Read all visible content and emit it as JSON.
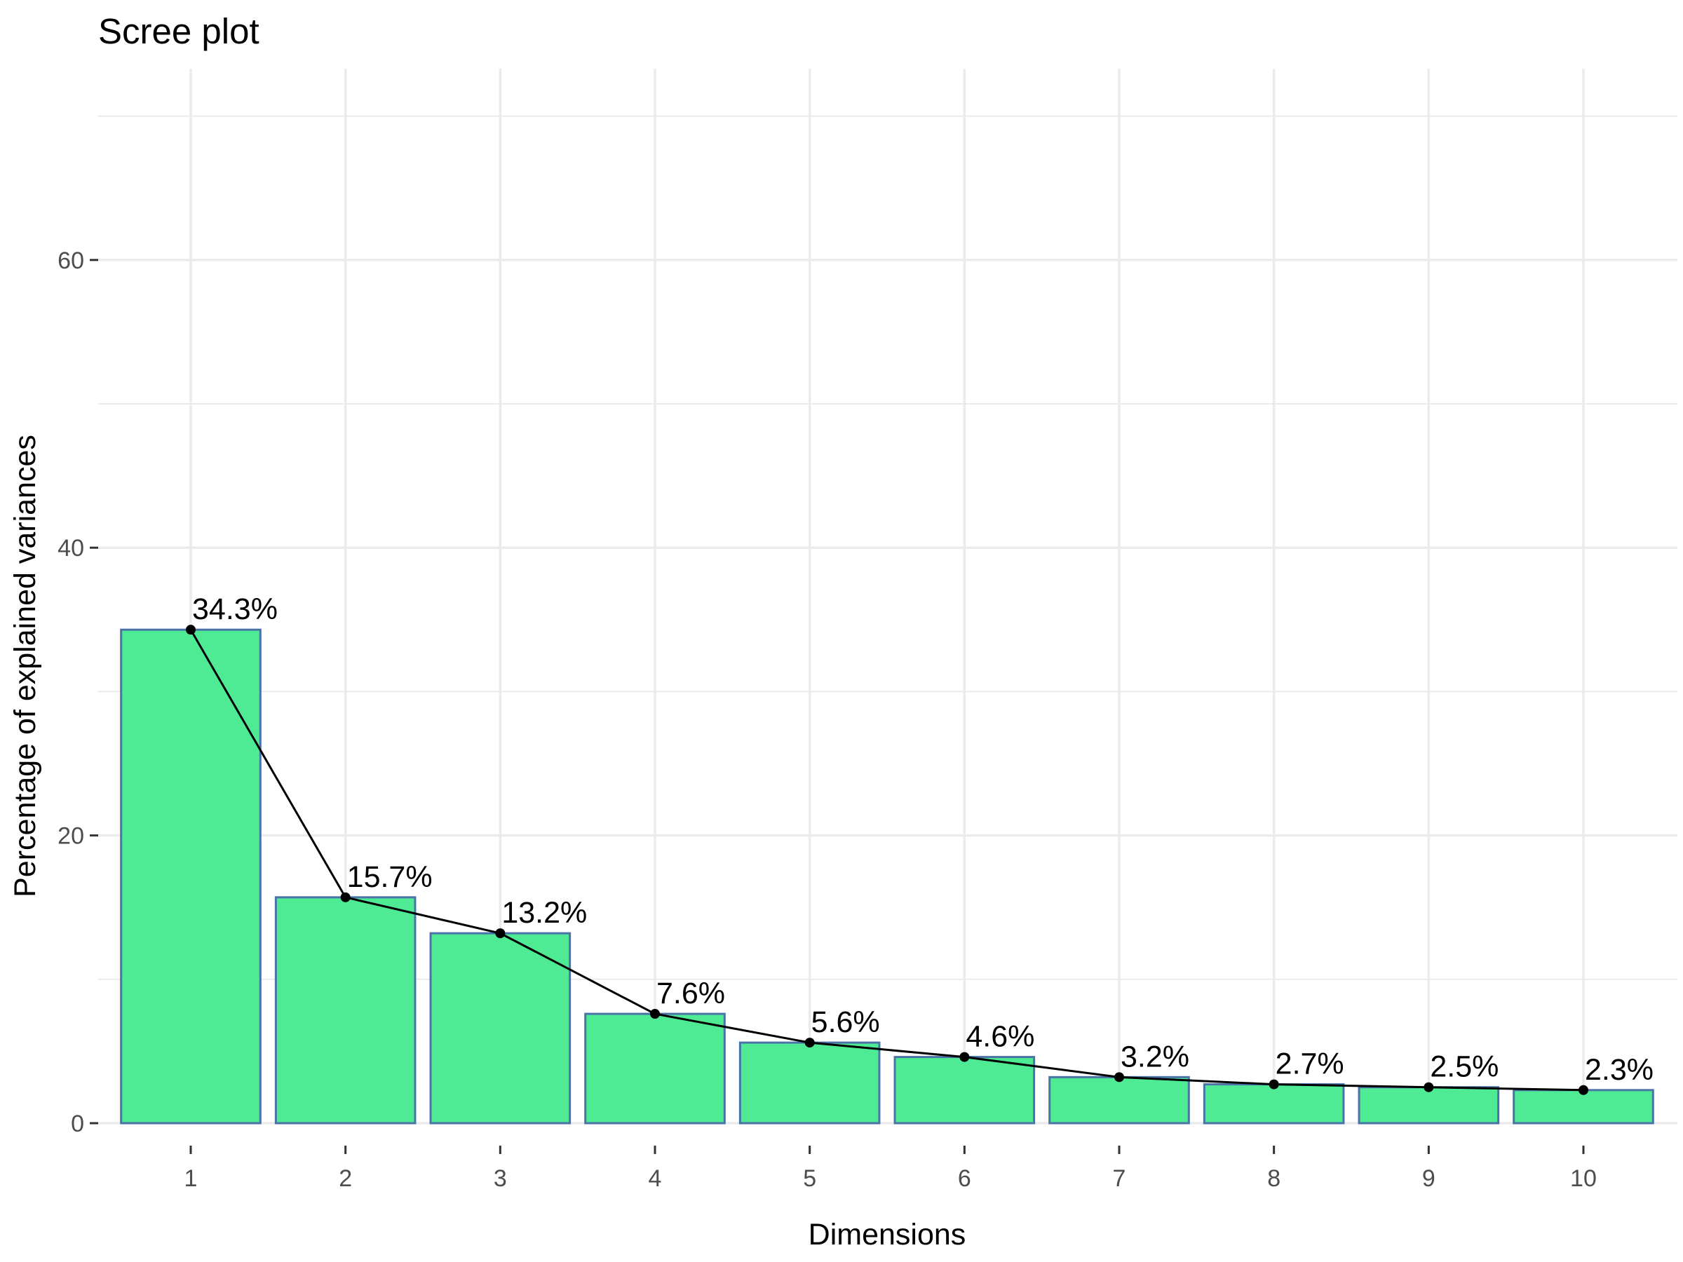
{
  "chart_data": {
    "type": "bar",
    "title": "Scree plot",
    "xlabel": "Dimensions",
    "ylabel": "Percentage of explained variances",
    "categories": [
      "1",
      "2",
      "3",
      "4",
      "5",
      "6",
      "7",
      "8",
      "9",
      "10"
    ],
    "values": [
      34.3,
      15.7,
      13.2,
      7.6,
      5.6,
      4.6,
      3.2,
      2.7,
      2.5,
      2.3
    ],
    "data_labels": [
      "34.3%",
      "15.7%",
      "13.2%",
      "7.6%",
      "5.6%",
      "4.6%",
      "3.2%",
      "2.7%",
      "2.5%",
      "2.3%"
    ],
    "ylim": [
      0,
      70
    ],
    "yticks": [
      0,
      20,
      40,
      60
    ],
    "ytick_labels": [
      "0",
      "20",
      "40",
      "60"
    ],
    "grid": true,
    "overlay_line": true,
    "colors": {
      "bar_fill": "#4EEB94",
      "bar_border": "#4A73A8",
      "line": "#000000",
      "point": "#000000",
      "grid": "#EBEBEB",
      "tick_text": "#4D4D4D",
      "text": "#000000"
    }
  }
}
